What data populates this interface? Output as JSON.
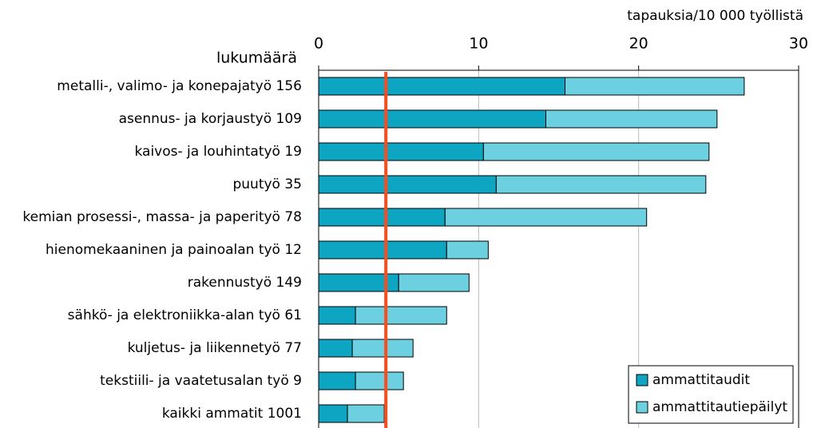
{
  "chart_data": {
    "type": "stacked_barh",
    "xlabel": "tapauksia/10 000 työllistä",
    "category_header": "lukumäärä",
    "categories": [
      "metalli-, valimo- ja konepajatyö 156",
      "asennus- ja korjaustyö 109",
      "kaivos- ja louhintatyö 19",
      "puutyö 35",
      "kemian prosessi-, massa- ja paperityö 78",
      "hienomekaaninen ja painoalan työ 12",
      "rakennustyö 149",
      "sähkö- ja elektroniikka-alan työ 61",
      "kuljetus- ja liikennetyö 77",
      "tekstiili- ja vaatetusalan työ 9",
      "kaikki ammatit 1001"
    ],
    "series": [
      {
        "name": "ammattitaudit",
        "color": "#0ea5c2",
        "values": [
          15.4,
          14.2,
          10.3,
          11.1,
          7.9,
          8.0,
          5.0,
          2.3,
          2.1,
          2.3,
          1.8
        ]
      },
      {
        "name": "ammattitautiepäilyt",
        "color": "#6dd0e0",
        "values": [
          11.2,
          10.7,
          14.1,
          13.1,
          12.6,
          2.6,
          4.4,
          5.7,
          3.8,
          3.0,
          2.3
        ]
      }
    ],
    "xlim": [
      0,
      30
    ],
    "xticks": [
      0,
      10,
      20,
      30
    ],
    "grid": true,
    "reference_line": 4.2,
    "reference_color": "#ff4a1c",
    "legend": "lower right"
  }
}
